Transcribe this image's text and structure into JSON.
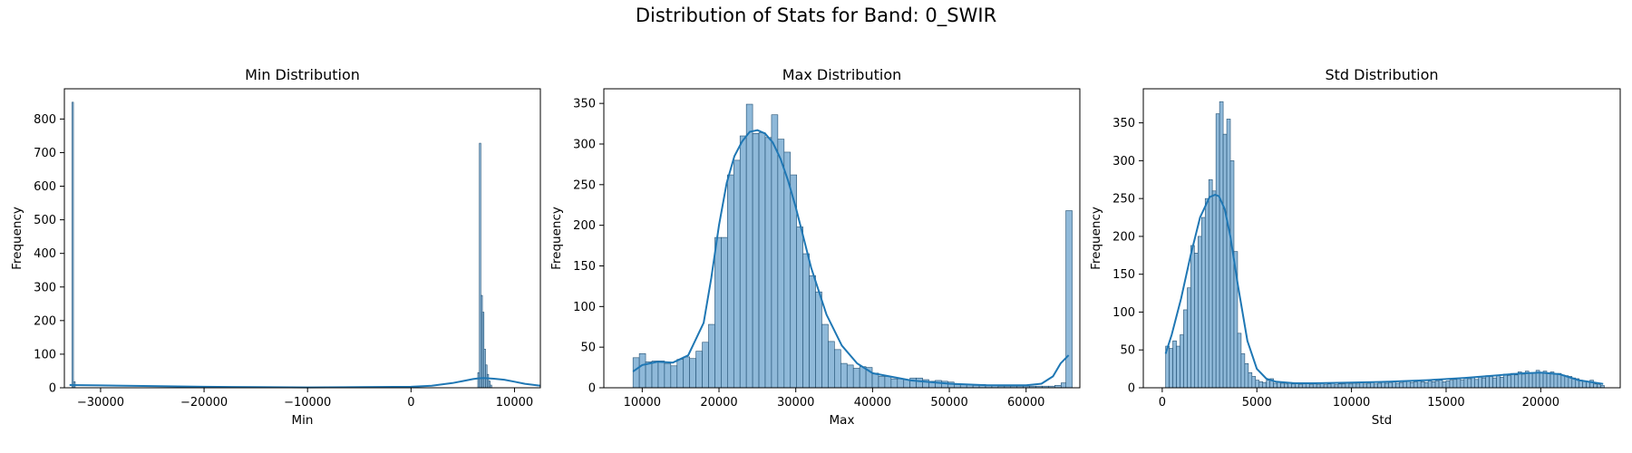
{
  "figure": {
    "title": "Distribution of Stats for Band: 0_SWIR"
  },
  "colors": {
    "bar_fill": "#8fb9d9",
    "bar_edge": "#1f4e72",
    "kde_line": "#1f77b4"
  },
  "chart_data": [
    {
      "type": "bar",
      "title": "Min Distribution",
      "xlabel": "Min",
      "ylabel": "Frequency",
      "xlim": [
        -33500,
        12500
      ],
      "ylim": [
        0,
        890
      ],
      "xticks": [
        -30000,
        -20000,
        -10000,
        0,
        10000
      ],
      "xtick_labels": [
        "−30000",
        "−20000",
        "−10000",
        "0",
        "10000"
      ],
      "yticks": [
        0,
        100,
        200,
        300,
        400,
        500,
        600,
        700,
        800
      ],
      "bin_width": 150,
      "bins": [
        [
          -32768,
          850
        ],
        [
          -32600,
          18
        ],
        [
          6450,
          45
        ],
        [
          6600,
          728
        ],
        [
          6750,
          275
        ],
        [
          6900,
          225
        ],
        [
          7050,
          115
        ],
        [
          7200,
          68
        ],
        [
          7350,
          40
        ],
        [
          7500,
          20
        ],
        [
          7650,
          8
        ]
      ],
      "kde": {
        "x": [
          -33000,
          -30000,
          -25000,
          -20000,
          -15000,
          -10000,
          -5000,
          0,
          2000,
          4000,
          5000,
          6000,
          6500,
          7000,
          7500,
          8000,
          9000,
          10000,
          11000,
          12500
        ],
        "y": [
          8,
          7,
          5,
          3,
          2,
          1,
          2,
          3,
          6,
          14,
          20,
          26,
          28,
          29,
          28,
          27,
          24,
          18,
          12,
          6
        ]
      }
    },
    {
      "type": "bar",
      "title": "Max Distribution",
      "xlabel": "Max",
      "ylabel": "Frequency",
      "xlim": [
        5000,
        67000
      ],
      "ylim": [
        0,
        368
      ],
      "xticks": [
        10000,
        20000,
        30000,
        40000,
        50000,
        60000
      ],
      "xtick_labels": [
        "10000",
        "20000",
        "30000",
        "40000",
        "50000",
        "60000"
      ],
      "yticks": [
        0,
        50,
        100,
        150,
        200,
        250,
        300,
        350
      ],
      "bin_width": 820,
      "bins": [
        [
          8800,
          37
        ],
        [
          9620,
          42
        ],
        [
          10440,
          32
        ],
        [
          11260,
          33
        ],
        [
          12080,
          33
        ],
        [
          12900,
          30
        ],
        [
          13720,
          27
        ],
        [
          14540,
          35
        ],
        [
          15360,
          38
        ],
        [
          16180,
          36
        ],
        [
          17000,
          45
        ],
        [
          17820,
          56
        ],
        [
          18640,
          78
        ],
        [
          19460,
          185
        ],
        [
          20280,
          185
        ],
        [
          21100,
          262
        ],
        [
          21920,
          280
        ],
        [
          22740,
          310
        ],
        [
          23560,
          349
        ],
        [
          24380,
          313
        ],
        [
          25200,
          314
        ],
        [
          26020,
          308
        ],
        [
          26840,
          336
        ],
        [
          27660,
          306
        ],
        [
          28480,
          290
        ],
        [
          29300,
          262
        ],
        [
          30120,
          198
        ],
        [
          30940,
          165
        ],
        [
          31760,
          138
        ],
        [
          32580,
          118
        ],
        [
          33400,
          78
        ],
        [
          34220,
          57
        ],
        [
          35040,
          47
        ],
        [
          35860,
          30
        ],
        [
          36680,
          28
        ],
        [
          37500,
          24
        ],
        [
          38320,
          26
        ],
        [
          39140,
          25
        ],
        [
          39960,
          18
        ],
        [
          40780,
          14
        ],
        [
          41600,
          14
        ],
        [
          42420,
          11
        ],
        [
          43240,
          11
        ],
        [
          44060,
          10
        ],
        [
          44880,
          12
        ],
        [
          45700,
          12
        ],
        [
          46520,
          10
        ],
        [
          47340,
          8
        ],
        [
          48160,
          9
        ],
        [
          48980,
          8
        ],
        [
          49800,
          7
        ],
        [
          50620,
          4
        ],
        [
          51440,
          4
        ],
        [
          52260,
          4
        ],
        [
          53080,
          3
        ],
        [
          53900,
          4
        ],
        [
          54720,
          3
        ],
        [
          55540,
          3
        ],
        [
          56360,
          2
        ],
        [
          57180,
          2
        ],
        [
          58000,
          2
        ],
        [
          58820,
          2
        ],
        [
          59640,
          2
        ],
        [
          60460,
          2
        ],
        [
          61280,
          2
        ],
        [
          62100,
          2
        ],
        [
          62920,
          2
        ],
        [
          63740,
          3
        ],
        [
          64560,
          6
        ],
        [
          65180,
          218
        ]
      ],
      "kde": {
        "x": [
          8800,
          10000,
          12000,
          14000,
          16000,
          18000,
          19000,
          20000,
          21000,
          22000,
          23000,
          24000,
          25000,
          26000,
          27000,
          28000,
          29000,
          30000,
          31000,
          32000,
          34000,
          36000,
          38000,
          40000,
          45000,
          50000,
          55000,
          60000,
          62000,
          63500,
          64500,
          65535
        ],
        "y": [
          20,
          28,
          32,
          31,
          40,
          80,
          135,
          200,
          252,
          285,
          303,
          315,
          317,
          313,
          302,
          282,
          255,
          222,
          185,
          148,
          90,
          52,
          30,
          18,
          9,
          5,
          3,
          3,
          5,
          14,
          30,
          40
        ]
      }
    },
    {
      "type": "bar",
      "title": "Std Distribution",
      "xlabel": "Std",
      "ylabel": "Frequency",
      "xlim": [
        -1000,
        24200
      ],
      "ylim": [
        0,
        395
      ],
      "xticks": [
        0,
        5000,
        10000,
        15000,
        20000
      ],
      "xtick_labels": [
        "0",
        "5000",
        "10000",
        "15000",
        "20000"
      ],
      "yticks": [
        0,
        50,
        100,
        150,
        200,
        250,
        300,
        350
      ],
      "bin_width": 190,
      "bins": [
        [
          180,
          55
        ],
        [
          370,
          52
        ],
        [
          560,
          62
        ],
        [
          750,
          55
        ],
        [
          940,
          70
        ],
        [
          1130,
          103
        ],
        [
          1320,
          132
        ],
        [
          1510,
          188
        ],
        [
          1700,
          178
        ],
        [
          1890,
          200
        ],
        [
          2080,
          225
        ],
        [
          2270,
          250
        ],
        [
          2460,
          275
        ],
        [
          2650,
          260
        ],
        [
          2840,
          362
        ],
        [
          3030,
          378
        ],
        [
          3220,
          335
        ],
        [
          3410,
          355
        ],
        [
          3600,
          300
        ],
        [
          3790,
          180
        ],
        [
          3980,
          72
        ],
        [
          4170,
          45
        ],
        [
          4360,
          32
        ],
        [
          4550,
          20
        ],
        [
          4740,
          15
        ],
        [
          4930,
          10
        ],
        [
          5120,
          8
        ],
        [
          5310,
          7
        ],
        [
          5500,
          10
        ],
        [
          5690,
          12
        ],
        [
          5880,
          6
        ],
        [
          6070,
          8
        ],
        [
          6260,
          6
        ],
        [
          6450,
          5
        ],
        [
          6640,
          7
        ],
        [
          6830,
          5
        ],
        [
          7020,
          6
        ],
        [
          7210,
          4
        ],
        [
          7400,
          5
        ],
        [
          7590,
          6
        ],
        [
          7780,
          4
        ],
        [
          7970,
          5
        ],
        [
          8160,
          4
        ],
        [
          8350,
          6
        ],
        [
          8540,
          4
        ],
        [
          8730,
          5
        ],
        [
          8920,
          6
        ],
        [
          9110,
          4
        ],
        [
          9300,
          5
        ],
        [
          9490,
          5
        ],
        [
          9680,
          6
        ],
        [
          9870,
          5
        ],
        [
          10060,
          6
        ],
        [
          10250,
          5
        ],
        [
          10440,
          7
        ],
        [
          10630,
          5
        ],
        [
          10820,
          6
        ],
        [
          11010,
          7
        ],
        [
          11200,
          5
        ],
        [
          11390,
          6
        ],
        [
          11580,
          8
        ],
        [
          11770,
          6
        ],
        [
          11960,
          7
        ],
        [
          12150,
          8
        ],
        [
          12340,
          6
        ],
        [
          12530,
          7
        ],
        [
          12720,
          8
        ],
        [
          12910,
          9
        ],
        [
          13100,
          7
        ],
        [
          13290,
          8
        ],
        [
          13480,
          9
        ],
        [
          13670,
          8
        ],
        [
          13860,
          7
        ],
        [
          14050,
          9
        ],
        [
          14240,
          8
        ],
        [
          14430,
          9
        ],
        [
          14620,
          10
        ],
        [
          14810,
          8
        ],
        [
          15000,
          9
        ],
        [
          15190,
          10
        ],
        [
          15380,
          11
        ],
        [
          15570,
          12
        ],
        [
          15760,
          10
        ],
        [
          15950,
          13
        ],
        [
          16140,
          12
        ],
        [
          16330,
          14
        ],
        [
          16520,
          11
        ],
        [
          16710,
          15
        ],
        [
          16900,
          13
        ],
        [
          17090,
          16
        ],
        [
          17280,
          15
        ],
        [
          17470,
          13
        ],
        [
          17660,
          17
        ],
        [
          17850,
          14
        ],
        [
          18040,
          18
        ],
        [
          18230,
          16
        ],
        [
          18420,
          19
        ],
        [
          18610,
          17
        ],
        [
          18800,
          21
        ],
        [
          18990,
          18
        ],
        [
          19180,
          22
        ],
        [
          19370,
          20
        ],
        [
          19560,
          19
        ],
        [
          19750,
          23
        ],
        [
          19940,
          20
        ],
        [
          20130,
          22
        ],
        [
          20320,
          19
        ],
        [
          20510,
          21
        ],
        [
          20700,
          18
        ],
        [
          20890,
          19
        ],
        [
          21080,
          17
        ],
        [
          21270,
          16
        ],
        [
          21460,
          15
        ],
        [
          21650,
          13
        ],
        [
          21840,
          12
        ],
        [
          22030,
          10
        ],
        [
          22220,
          9
        ],
        [
          22410,
          8
        ],
        [
          22600,
          10
        ],
        [
          22790,
          5
        ],
        [
          22980,
          4
        ],
        [
          23170,
          3
        ]
      ],
      "kde": {
        "x": [
          180,
          500,
          1000,
          1500,
          2000,
          2500,
          2800,
          3000,
          3300,
          3600,
          4000,
          4500,
          5000,
          5500,
          6000,
          7000,
          8000,
          10000,
          12000,
          14000,
          16000,
          18000,
          19000,
          20000,
          21000,
          22000,
          23300
        ],
        "y": [
          45,
          70,
          118,
          175,
          225,
          252,
          255,
          253,
          236,
          200,
          135,
          62,
          25,
          12,
          8,
          6,
          6,
          7,
          8,
          10,
          13,
          17,
          19,
          20,
          18,
          10,
          5
        ]
      }
    }
  ]
}
